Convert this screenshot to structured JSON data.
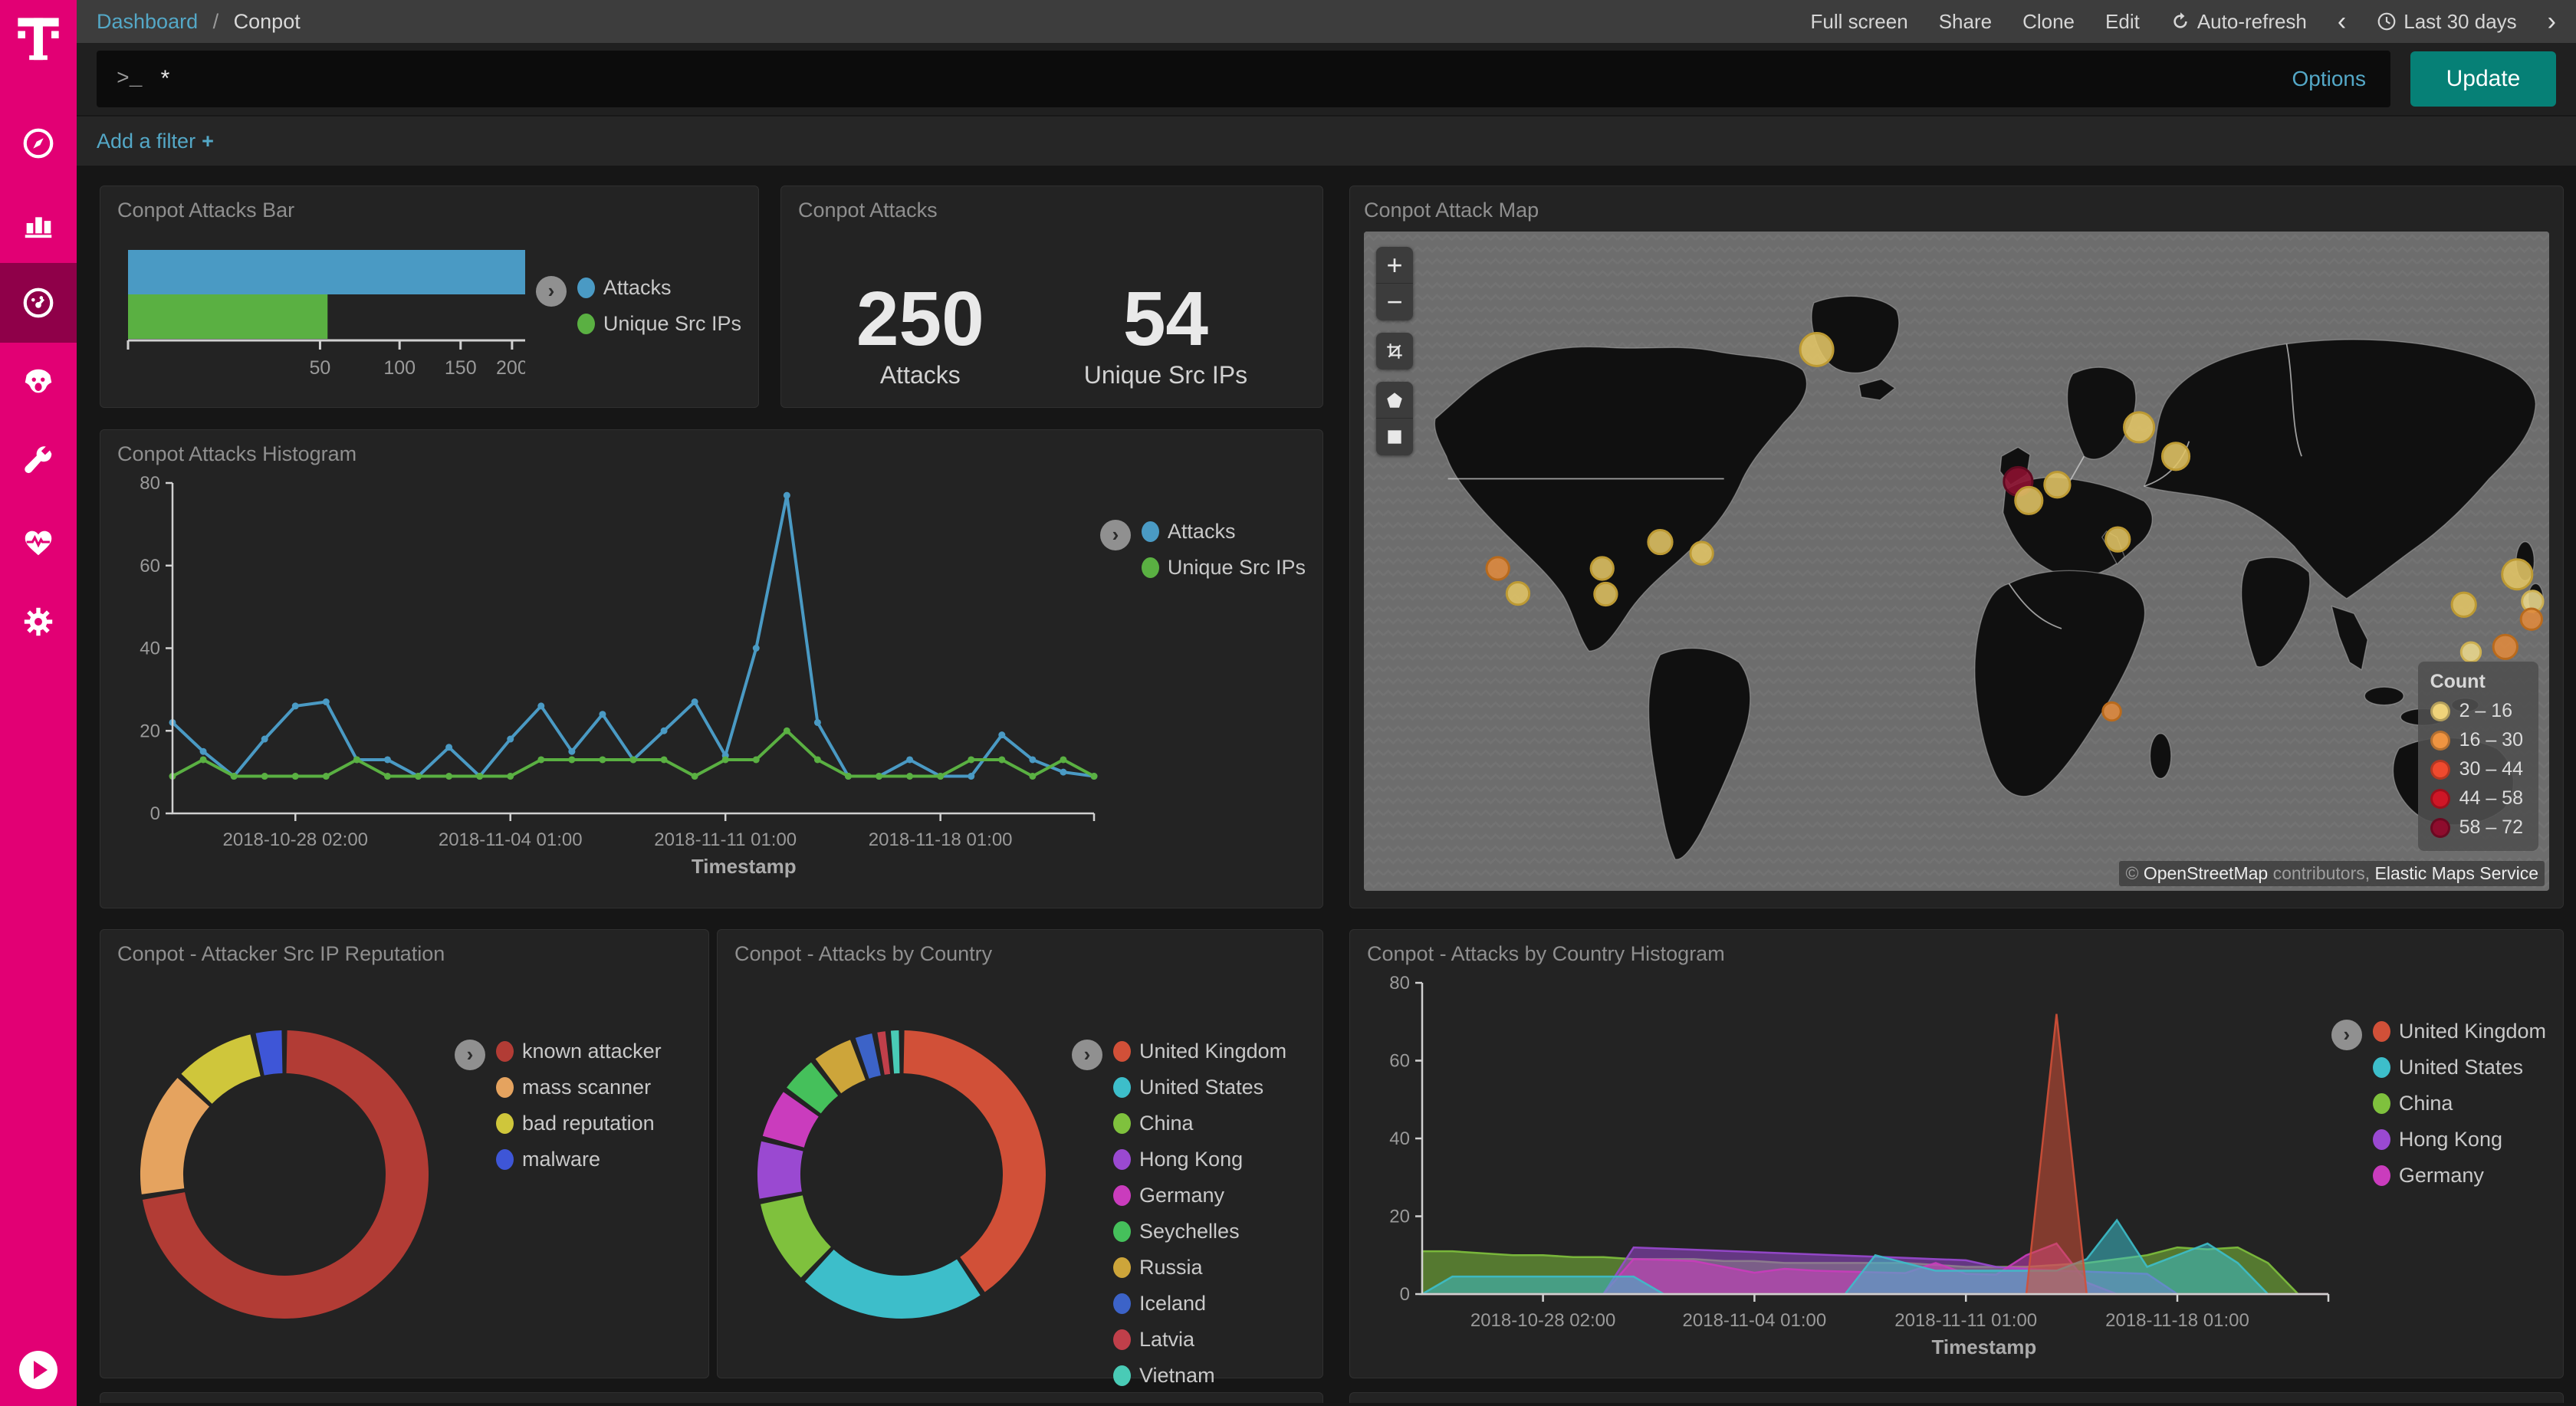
{
  "app": {
    "breadcrumb": {
      "section": "Dashboard",
      "separator": "/",
      "page": "Conpot"
    },
    "topnav": [
      "Full screen",
      "Share",
      "Clone",
      "Edit"
    ],
    "autorefresh_label": "Auto-refresh",
    "timepicker": {
      "prev": "‹",
      "label": "Last 30 days",
      "next": "›"
    },
    "query": {
      "prompt": ">_",
      "value": "*",
      "options_label": "Options",
      "update_label": "Update"
    },
    "filter": {
      "add_label": "Add a filter",
      "plus": "+"
    },
    "colors": {
      "accent_link": "#54a8c7",
      "update_button": "#068076",
      "sidebar": "#e20074",
      "sidebar_active": "#8f0049"
    }
  },
  "sidebar": {
    "items": [
      {
        "id": "discover",
        "icon": "compass-icon",
        "active": false
      },
      {
        "id": "visualize",
        "icon": "bar-chart-icon",
        "active": false
      },
      {
        "id": "dashboard",
        "icon": "gauge-icon",
        "active": true
      },
      {
        "id": "timelion",
        "icon": "lion-face-icon",
        "active": false
      },
      {
        "id": "dev-tools",
        "icon": "wrench-icon",
        "active": false
      },
      {
        "id": "monitoring",
        "icon": "heartbeat-icon",
        "active": false
      },
      {
        "id": "management",
        "icon": "gear-icon",
        "active": false
      }
    ]
  },
  "panels": {
    "bar": {
      "title": "Conpot Attacks Bar"
    },
    "metric": {
      "title": "Conpot Attacks",
      "metrics": [
        {
          "value": "250",
          "label": "Attacks"
        },
        {
          "value": "54",
          "label": "Unique Src IPs"
        }
      ]
    },
    "map": {
      "title": "Conpot Attack Map",
      "controls": [
        "zoom-in",
        "zoom-out",
        "fit-data-bounds",
        "draw-polygon",
        "draw-rectangle"
      ],
      "legend": {
        "title": "Count",
        "items": [
          {
            "range": "2 – 16",
            "color": "#efd37a"
          },
          {
            "range": "16 – 30",
            "color": "#ef9441"
          },
          {
            "range": "30 – 44",
            "color": "#f04a2e"
          },
          {
            "range": "44 – 58",
            "color": "#cf1626"
          },
          {
            "range": "58 – 72",
            "color": "#8e0c2d"
          }
        ]
      },
      "attribution": {
        "copyright": "©",
        "link1": "OpenStreetMap",
        "middle": "contributors,",
        "link2": "Elastic Maps Service"
      },
      "markers": [
        {
          "x": 38.2,
          "y": 17.9,
          "r": 22,
          "bucket": "2-16"
        },
        {
          "x": 55.2,
          "y": 37.9,
          "r": 19,
          "bucket": "58-72"
        },
        {
          "x": 56.1,
          "y": 40.8,
          "r": 18,
          "bucket": "2-16"
        },
        {
          "x": 58.5,
          "y": 38.4,
          "r": 17,
          "bucket": "2-16"
        },
        {
          "x": 65.4,
          "y": 29.7,
          "r": 20,
          "bucket": "2-16"
        },
        {
          "x": 68.5,
          "y": 34.1,
          "r": 18,
          "bucket": "2-16"
        },
        {
          "x": 63.6,
          "y": 46.7,
          "r": 16,
          "bucket": "2-16"
        },
        {
          "x": 11.3,
          "y": 51.1,
          "r": 15,
          "bucket": "16-30"
        },
        {
          "x": 13.0,
          "y": 54.9,
          "r": 15,
          "bucket": "2-16"
        },
        {
          "x": 20.1,
          "y": 51.1,
          "r": 15,
          "bucket": "2-16"
        },
        {
          "x": 20.4,
          "y": 55.0,
          "r": 15,
          "bucket": "2-16"
        },
        {
          "x": 25.0,
          "y": 47.1,
          "r": 16,
          "bucket": "2-16"
        },
        {
          "x": 28.5,
          "y": 48.8,
          "r": 15,
          "bucket": "2-16"
        },
        {
          "x": 63.1,
          "y": 72.8,
          "r": 12,
          "bucket": "16-30"
        },
        {
          "x": 97.3,
          "y": 52.0,
          "r": 20,
          "bucket": "2-16"
        },
        {
          "x": 92.8,
          "y": 56.6,
          "r": 16,
          "bucket": "2-16"
        },
        {
          "x": 98.6,
          "y": 56.1,
          "r": 14,
          "bucket": "2-16-pale"
        },
        {
          "x": 98.5,
          "y": 58.8,
          "r": 14,
          "bucket": "16-30"
        },
        {
          "x": 96.3,
          "y": 63.0,
          "r": 16,
          "bucket": "16-30"
        },
        {
          "x": 93.4,
          "y": 63.8,
          "r": 13,
          "bucket": "2-16-pale"
        }
      ],
      "marker_colors": {
        "2-16": {
          "fill": "#e2c565",
          "stroke": "#bd9a33"
        },
        "2-16-pale": {
          "fill": "#ecd98e",
          "stroke": "#cdb052"
        },
        "16-30": {
          "fill": "#e08a3e",
          "stroke": "#b96a1c"
        },
        "58-72": {
          "fill": "#8e1030",
          "stroke": "#5f0a20"
        }
      }
    },
    "histogram": {
      "title": "Conpot Attacks Histogram"
    },
    "reputation": {
      "title": "Conpot - Attacker Src IP Reputation"
    },
    "country": {
      "title": "Conpot - Attacks by Country"
    },
    "country_histogram": {
      "title": "Conpot - Attacks by Country Histogram"
    }
  },
  "chart_data": [
    {
      "id": "attacks-bar",
      "type": "bar",
      "orientation": "horizontal",
      "scale": "square-root",
      "title": "Conpot Attacks Bar",
      "categories": [
        "Attacks",
        "Unique Src IPs"
      ],
      "values": [
        250,
        54
      ],
      "colors": [
        "#4a9ac4",
        "#5ab042"
      ],
      "xticks": [
        50,
        100,
        150,
        200
      ],
      "xmax": 250
    },
    {
      "id": "attacks-histogram",
      "type": "line",
      "title": "Conpot Attacks Histogram",
      "xlabel": "Timestamp",
      "ylim": [
        0,
        80
      ],
      "yticks": [
        0,
        20,
        40,
        60,
        80
      ],
      "x_tick_labels": [
        "2018-10-28 02:00",
        "2018-11-04 01:00",
        "2018-11-11 01:00",
        "2018-11-18 01:00"
      ],
      "x_tick_index": [
        4,
        11,
        18,
        25
      ],
      "n": 31,
      "series": [
        {
          "name": "Attacks",
          "color": "#4a9ac4",
          "values": [
            22,
            15,
            9,
            18,
            26,
            27,
            13,
            13,
            9,
            16,
            9,
            18,
            26,
            15,
            24,
            13,
            20,
            27,
            14,
            40,
            77,
            22,
            9,
            9,
            13,
            9,
            9,
            19,
            13,
            10,
            9
          ]
        },
        {
          "name": "Unique Src IPs",
          "color": "#5ab042",
          "values": [
            9,
            13,
            9,
            9,
            9,
            9,
            13,
            9,
            9,
            9,
            9,
            9,
            13,
            13,
            13,
            13,
            13,
            9,
            13,
            13,
            20,
            13,
            9,
            9,
            9,
            9,
            13,
            13,
            9,
            13,
            9
          ]
        }
      ]
    },
    {
      "id": "src-ip-reputation",
      "type": "pie",
      "donut": true,
      "title": "Conpot - Attacker Src IP Reputation",
      "slices": [
        {
          "label": "known attacker",
          "value": 72.5,
          "color": "#b23c35"
        },
        {
          "label": "mass scanner",
          "value": 14.5,
          "color": "#e5a35f"
        },
        {
          "label": "bad reputation",
          "value": 9.5,
          "color": "#cfc63b"
        },
        {
          "label": "malware",
          "value": 3.5,
          "color": "#3e56d7"
        }
      ]
    },
    {
      "id": "attacks-by-country",
      "type": "pie",
      "donut": true,
      "title": "Conpot - Attacks by Country",
      "slices": [
        {
          "label": "United Kingdom",
          "value": 40.5,
          "color": "#d15038"
        },
        {
          "label": "United States",
          "value": 21.5,
          "color": "#3dbeca"
        },
        {
          "label": "China",
          "value": 10,
          "color": "#7fc13d"
        },
        {
          "label": "Hong Kong",
          "value": 7,
          "color": "#9a49d1"
        },
        {
          "label": "Germany",
          "value": 6,
          "color": "#ca3cbd"
        },
        {
          "label": "Seychelles",
          "value": 4.5,
          "color": "#45c05b"
        },
        {
          "label": "Russia",
          "value": 5,
          "color": "#cda53a"
        },
        {
          "label": "Iceland",
          "value": 2.5,
          "color": "#3c63c8"
        },
        {
          "label": "Latvia",
          "value": 1.5,
          "color": "#c03f4a"
        },
        {
          "label": "Vietnam",
          "value": 1.5,
          "color": "#49cbb6"
        }
      ]
    },
    {
      "id": "attacks-by-country-histogram",
      "type": "area",
      "title": "Conpot - Attacks by Country Histogram",
      "xlabel": "Timestamp",
      "ylim": [
        0,
        80
      ],
      "yticks": [
        0,
        20,
        40,
        60,
        80
      ],
      "x_tick_labels": [
        "2018-10-28 02:00",
        "2018-11-04 01:00",
        "2018-11-11 01:00",
        "2018-11-18 01:00"
      ],
      "x_tick_index": [
        4,
        11,
        18,
        25
      ],
      "n": 31,
      "legend_order": [
        "United Kingdom",
        "United States",
        "China",
        "Hong Kong",
        "Germany"
      ],
      "series": [
        {
          "name": "China",
          "color": "#7fc13d",
          "values": [
            11,
            11,
            10.5,
            10,
            10,
            9.5,
            9.5,
            9,
            9,
            9,
            8.5,
            8.5,
            8,
            8,
            8,
            8,
            8,
            7.5,
            7,
            7,
            7,
            7.5,
            8,
            9,
            10,
            12,
            11.5,
            12,
            8,
            0,
            0
          ]
        },
        {
          "name": "Hong Kong",
          "color": "#9a49d1",
          "values": [
            0,
            0,
            0,
            0,
            0,
            0,
            0,
            12,
            11.7,
            11.4,
            11.1,
            10.8,
            10.5,
            10.2,
            9.9,
            9.6,
            9.3,
            9,
            8.7,
            7,
            6.5,
            6,
            5.8,
            5.5,
            5.2,
            0,
            0,
            0,
            0,
            0,
            0
          ]
        },
        {
          "name": "Germany",
          "color": "#ca3cbd",
          "values": [
            0,
            0,
            0,
            0,
            0,
            0,
            0,
            9,
            8.8,
            8.5,
            7,
            5.5,
            6.5,
            6,
            5.8,
            5.6,
            5.4,
            8,
            5.2,
            5,
            10,
            13,
            3,
            0,
            0,
            0,
            0,
            0,
            0,
            0,
            0
          ]
        },
        {
          "name": "United States",
          "color": "#3dbeca",
          "values": [
            0,
            4.5,
            4.5,
            4.5,
            4.5,
            4.5,
            4.5,
            4.5,
            0,
            0,
            0,
            0,
            0,
            0,
            0,
            10,
            8,
            6,
            6,
            6,
            6,
            6,
            9,
            19,
            7,
            10,
            13,
            8,
            0,
            0,
            0
          ]
        },
        {
          "name": "United Kingdom",
          "color": "#d15038",
          "values": [
            0,
            0,
            0,
            0,
            0,
            0,
            0,
            0,
            0,
            0,
            0,
            0,
            0,
            0,
            0,
            0,
            0,
            0,
            0,
            0,
            0,
            72,
            0,
            0,
            0,
            0,
            0,
            0,
            0,
            0,
            0
          ]
        }
      ]
    }
  ]
}
